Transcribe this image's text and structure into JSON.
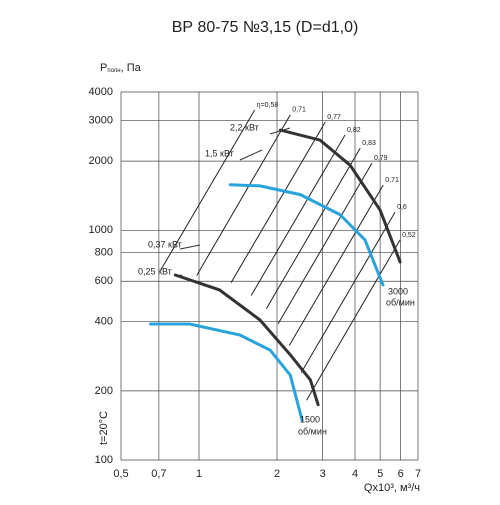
{
  "chart_data": {
    "type": "fan-curve",
    "title": "ВР 80-75 №3,15 (D=d1,0)",
    "y_label": "P",
    "y_label_sub": "полн",
    "y_label_unit": ", Па",
    "x_label": "Qx10³, м³/ч",
    "side_label": "t=20°C",
    "log_x": true,
    "log_y": true,
    "grid": true,
    "xlim": [
      0.5,
      7
    ],
    "ylim": [
      100,
      4000
    ],
    "xticks": [
      {
        "value": 0.5,
        "label": "0,5"
      },
      {
        "value": 0.7,
        "label": "0,7"
      },
      1,
      2,
      3,
      4,
      5,
      6,
      7
    ],
    "yticks": [
      100,
      200,
      400,
      600,
      800,
      1000,
      2000,
      3000,
      4000
    ],
    "curves": [
      {
        "color": "#29a3dc",
        "x": [
          1.32,
          1.72,
          2.46,
          3.5,
          4.37,
          5.13
        ],
        "y": [
          1580,
          1560,
          1430,
          1170,
          907,
          578
        ]
      },
      {
        "color": "#333333",
        "x": [
          2.06,
          2.93,
          3.83,
          5.0,
          5.97
        ],
        "y": [
          2730,
          2470,
          1920,
          1225,
          728
        ]
      },
      {
        "color": "#29a3dc",
        "x": [
          0.65,
          0.92,
          1.44,
          1.88,
          2.25,
          2.5
        ],
        "y": [
          391,
          391,
          350,
          301,
          234,
          149
        ]
      },
      {
        "color": "#333333",
        "x": [
          0.81,
          1.2,
          1.72,
          2.25,
          2.69,
          2.88
        ],
        "y": [
          639,
          550,
          407,
          287,
          223,
          174
        ]
      }
    ],
    "efficiency_lines": [
      {
        "label": "η=0,58",
        "x": [
          0.71,
          1.64
        ],
        "y": [
          668,
          3340
        ]
      },
      {
        "label": "0,71",
        "x": [
          0.98,
          2.25
        ],
        "y": [
          636,
          3180
        ]
      },
      {
        "label": "0,77",
        "x": [
          1.33,
          3.07
        ],
        "y": [
          592,
          2960
        ]
      },
      {
        "label": "0,82",
        "x": [
          1.59,
          3.66
        ],
        "y": [
          520,
          2600
        ]
      },
      {
        "label": "0,83",
        "x": [
          1.82,
          4.19
        ],
        "y": [
          456,
          2280
        ]
      },
      {
        "label": "0,79",
        "x": [
          2.02,
          4.65
        ],
        "y": [
          392,
          1960
        ]
      },
      {
        "label": "0,71",
        "x": [
          2.23,
          5.14
        ],
        "y": [
          315,
          1575
        ]
      },
      {
        "label": "0,6",
        "x": [
          2.48,
          5.71
        ],
        "y": [
          240,
          1200
        ]
      },
      {
        "label": "0,52",
        "x": [
          2.6,
          5.97
        ],
        "y": [
          182,
          908
        ]
      }
    ],
    "annotations": [
      "2,2 кВт",
      "1,5 кВт",
      "0,37 кВт",
      "0,25 кВт",
      "3000",
      "об/мин",
      "1500",
      "об/мин"
    ]
  }
}
